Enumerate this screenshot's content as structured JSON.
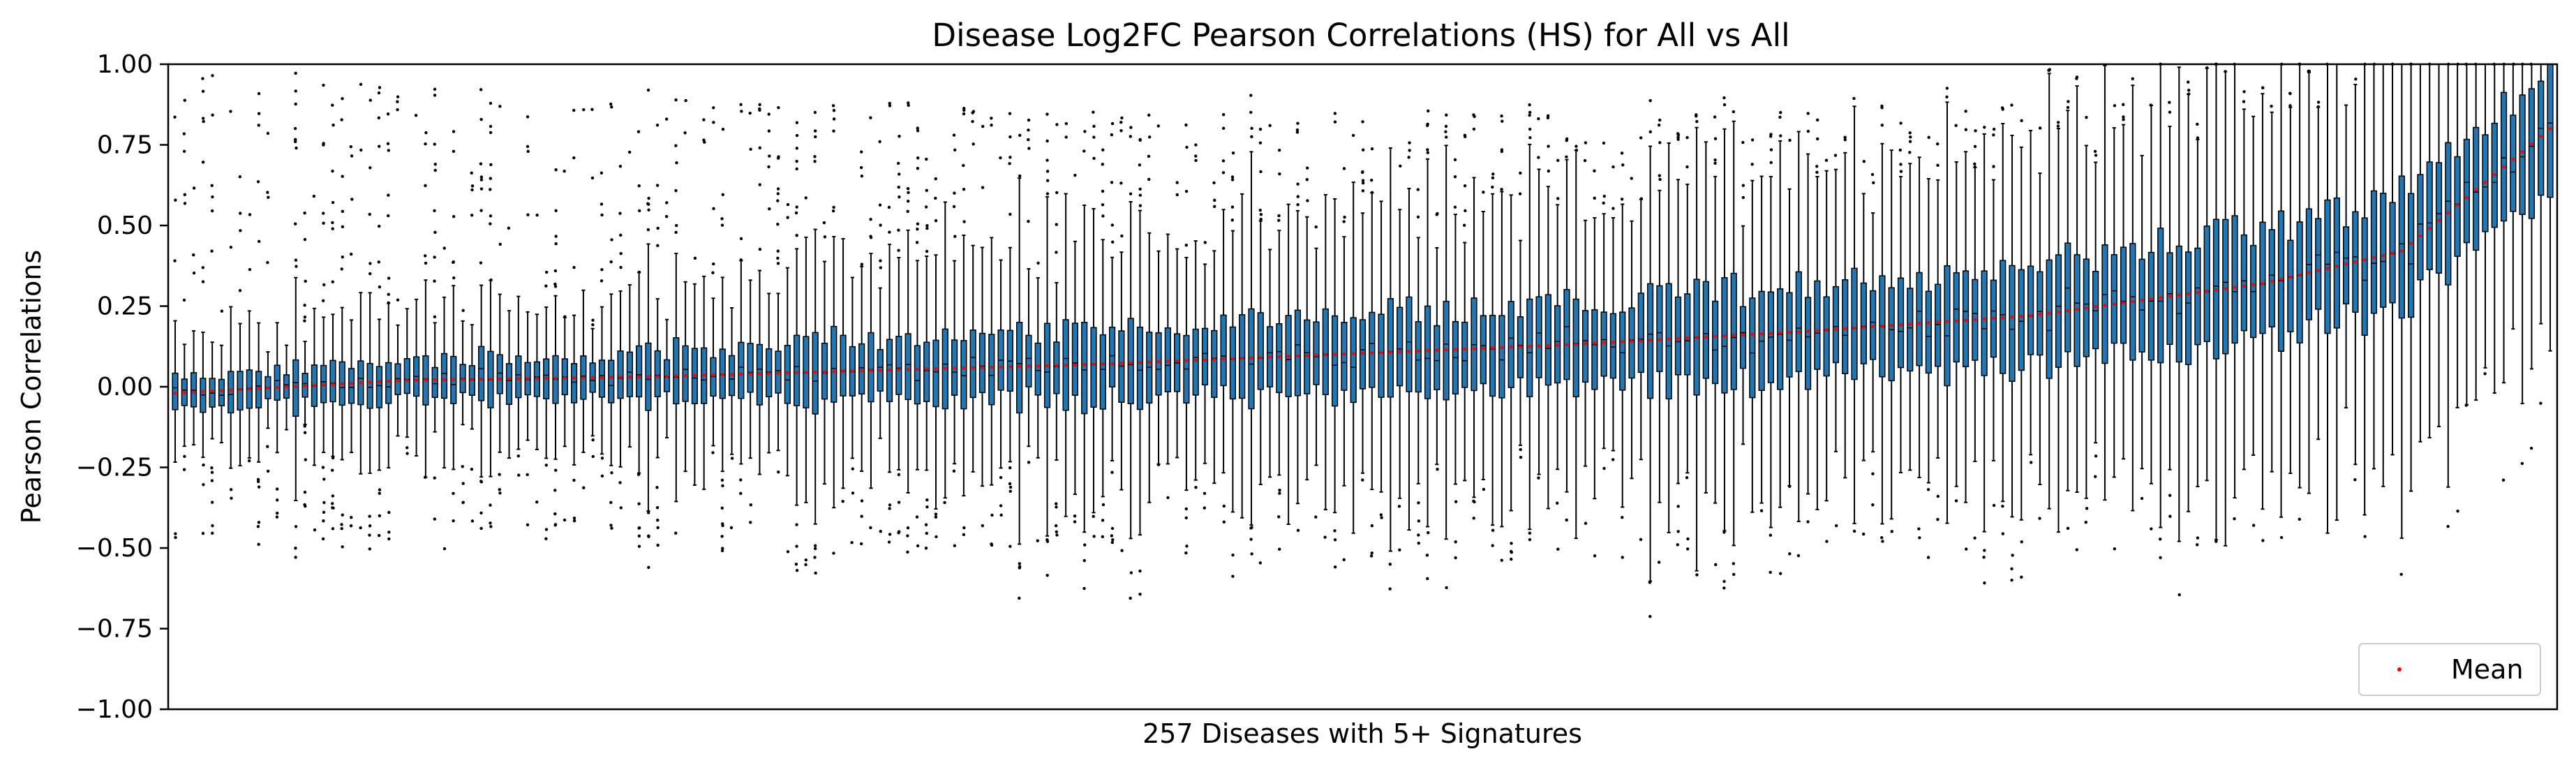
{
  "chart_data": {
    "type": "box",
    "title": "Disease Log2FC Pearson Correlations (HS) for All vs All",
    "xlabel": "257 Diseases with 5+ Signatures",
    "ylabel": "Pearson Correlations",
    "ylim": [
      -1.0,
      1.0
    ],
    "yticks": [
      -1.0,
      -0.75,
      -0.5,
      -0.25,
      0.0,
      0.25,
      0.5,
      0.75,
      1.0
    ],
    "ytick_labels": [
      "−1.00",
      "−0.75",
      "−0.50",
      "−0.25",
      "0.00",
      "0.25",
      "0.50",
      "0.75",
      "1.00"
    ],
    "xticks_shown": false,
    "n_boxes": 257,
    "sorted_by": "mean ascending",
    "box_color": "#1f77b4",
    "mean_color": "#ff0000",
    "mean_profile": {
      "box_index": [
        0,
        25,
        50,
        75,
        100,
        125,
        150,
        175,
        200,
        225,
        240,
        256
      ],
      "mean": [
        -0.02,
        0.02,
        0.03,
        0.05,
        0.07,
        0.1,
        0.13,
        0.17,
        0.22,
        0.32,
        0.42,
        0.8
      ]
    },
    "legend": {
      "entries": [
        {
          "label": "Mean",
          "marker": "dot",
          "color": "#ff0000"
        }
      ],
      "location": "lower right"
    }
  }
}
